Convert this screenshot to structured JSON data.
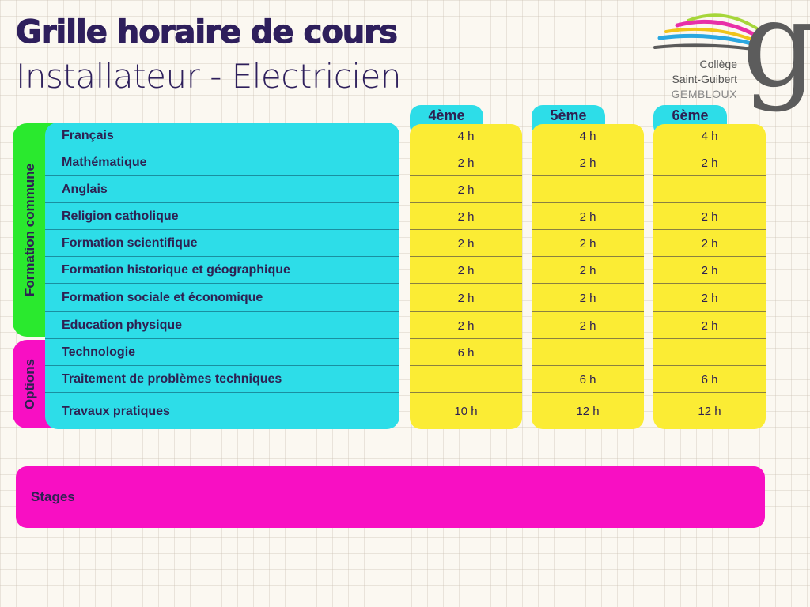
{
  "header": {
    "title": "Grille horaire de cours",
    "subtitle": "Installateur - Electricien"
  },
  "logo": {
    "line1": "Collège",
    "line2": "Saint-Guibert",
    "line3": "GEMBLOUX",
    "letter": "g"
  },
  "groups": {
    "common": "Formation commune",
    "options": "Options"
  },
  "years": [
    "4ème",
    "5ème",
    "6ème"
  ],
  "subjects": [
    "Français",
    "Mathématique",
    "Anglais",
    "Religion catholique",
    "Formation scientifique",
    "Formation historique et géographique",
    "Formation sociale et économique",
    "Education physique",
    "Technologie",
    "Traitement de problèmes techniques",
    "Travaux pratiques"
  ],
  "hours": {
    "y4": [
      "4 h",
      "2 h",
      "2 h",
      "2 h",
      "2 h",
      "2 h",
      "2 h",
      "2 h",
      "6 h",
      "",
      "10 h"
    ],
    "y5": [
      "4 h",
      "2 h",
      "",
      "2 h",
      "2 h",
      "2 h",
      "2 h",
      "2 h",
      "",
      "6 h",
      "12 h"
    ],
    "y6": [
      "4 h",
      "2 h",
      "",
      "2 h",
      "2 h",
      "2 h",
      "2 h",
      "2 h",
      "",
      "6 h",
      "12 h"
    ]
  },
  "stages": "Stages",
  "colors": {
    "background": "#fbf8f1",
    "title": "#2e1f5c",
    "cyan": "#2ddde8",
    "yellow": "#fbec34",
    "green": "#2ae92e",
    "magenta": "#f80fc3"
  }
}
